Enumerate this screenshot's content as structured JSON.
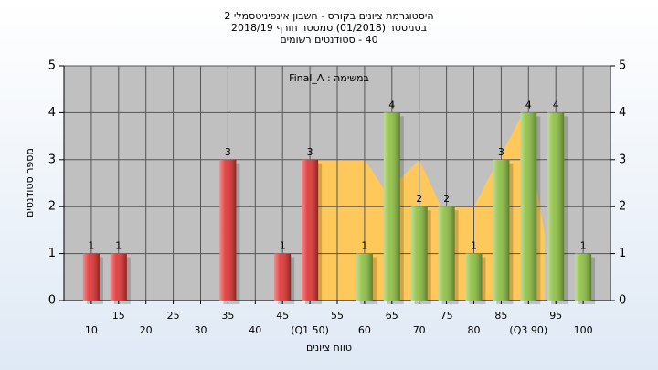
{
  "chart_data": {
    "type": "bar",
    "title_lines": [
      "היסטוגרמת ציונים בקורס - חשבון אינפיניטסמלי 2",
      "בסמסטר  (01/2018)  סמסטר חורף 2018/19",
      "40 - סטודנטים רשומים"
    ],
    "annotation": "במשימה : Final_A",
    "x_label": "טווח ציונים",
    "y_label": "מספר סטודנטים",
    "categories": [
      "10",
      "15",
      "20",
      "25",
      "30",
      "35",
      "40",
      "45",
      "(Q1 50)",
      "55",
      "60",
      "65",
      "70",
      "75",
      "80",
      "85",
      "(Q3 90)",
      "95",
      "100"
    ],
    "values": [
      1,
      1,
      0,
      0,
      0,
      3,
      0,
      1,
      3,
      0,
      1,
      4,
      2,
      2,
      1,
      3,
      4,
      4,
      1
    ],
    "colors": [
      "#e03030",
      "#e03030",
      "#e03030",
      "#e03030",
      "#e03030",
      "#e03030",
      "#e03030",
      "#e03030",
      "#e03030",
      "#8cbf3f",
      "#8cbf3f",
      "#8cbf3f",
      "#8cbf3f",
      "#8cbf3f",
      "#8cbf3f",
      "#8cbf3f",
      "#8cbf3f",
      "#8cbf3f",
      "#8cbf3f"
    ],
    "area": {
      "color": "#ffc85a",
      "x": [
        50,
        50,
        60,
        64,
        70,
        74,
        80,
        89,
        93,
        93
      ],
      "values": [
        0,
        3,
        3,
        2.3,
        3,
        2,
        2,
        4,
        1.4,
        0
      ]
    },
    "ylim": [
      0,
      5
    ],
    "yticks": [
      0,
      1,
      2,
      3,
      4,
      5
    ],
    "y2lim": [
      0,
      5
    ],
    "y2ticks": [
      0,
      1,
      2,
      3,
      4,
      5
    ],
    "grid": true
  }
}
